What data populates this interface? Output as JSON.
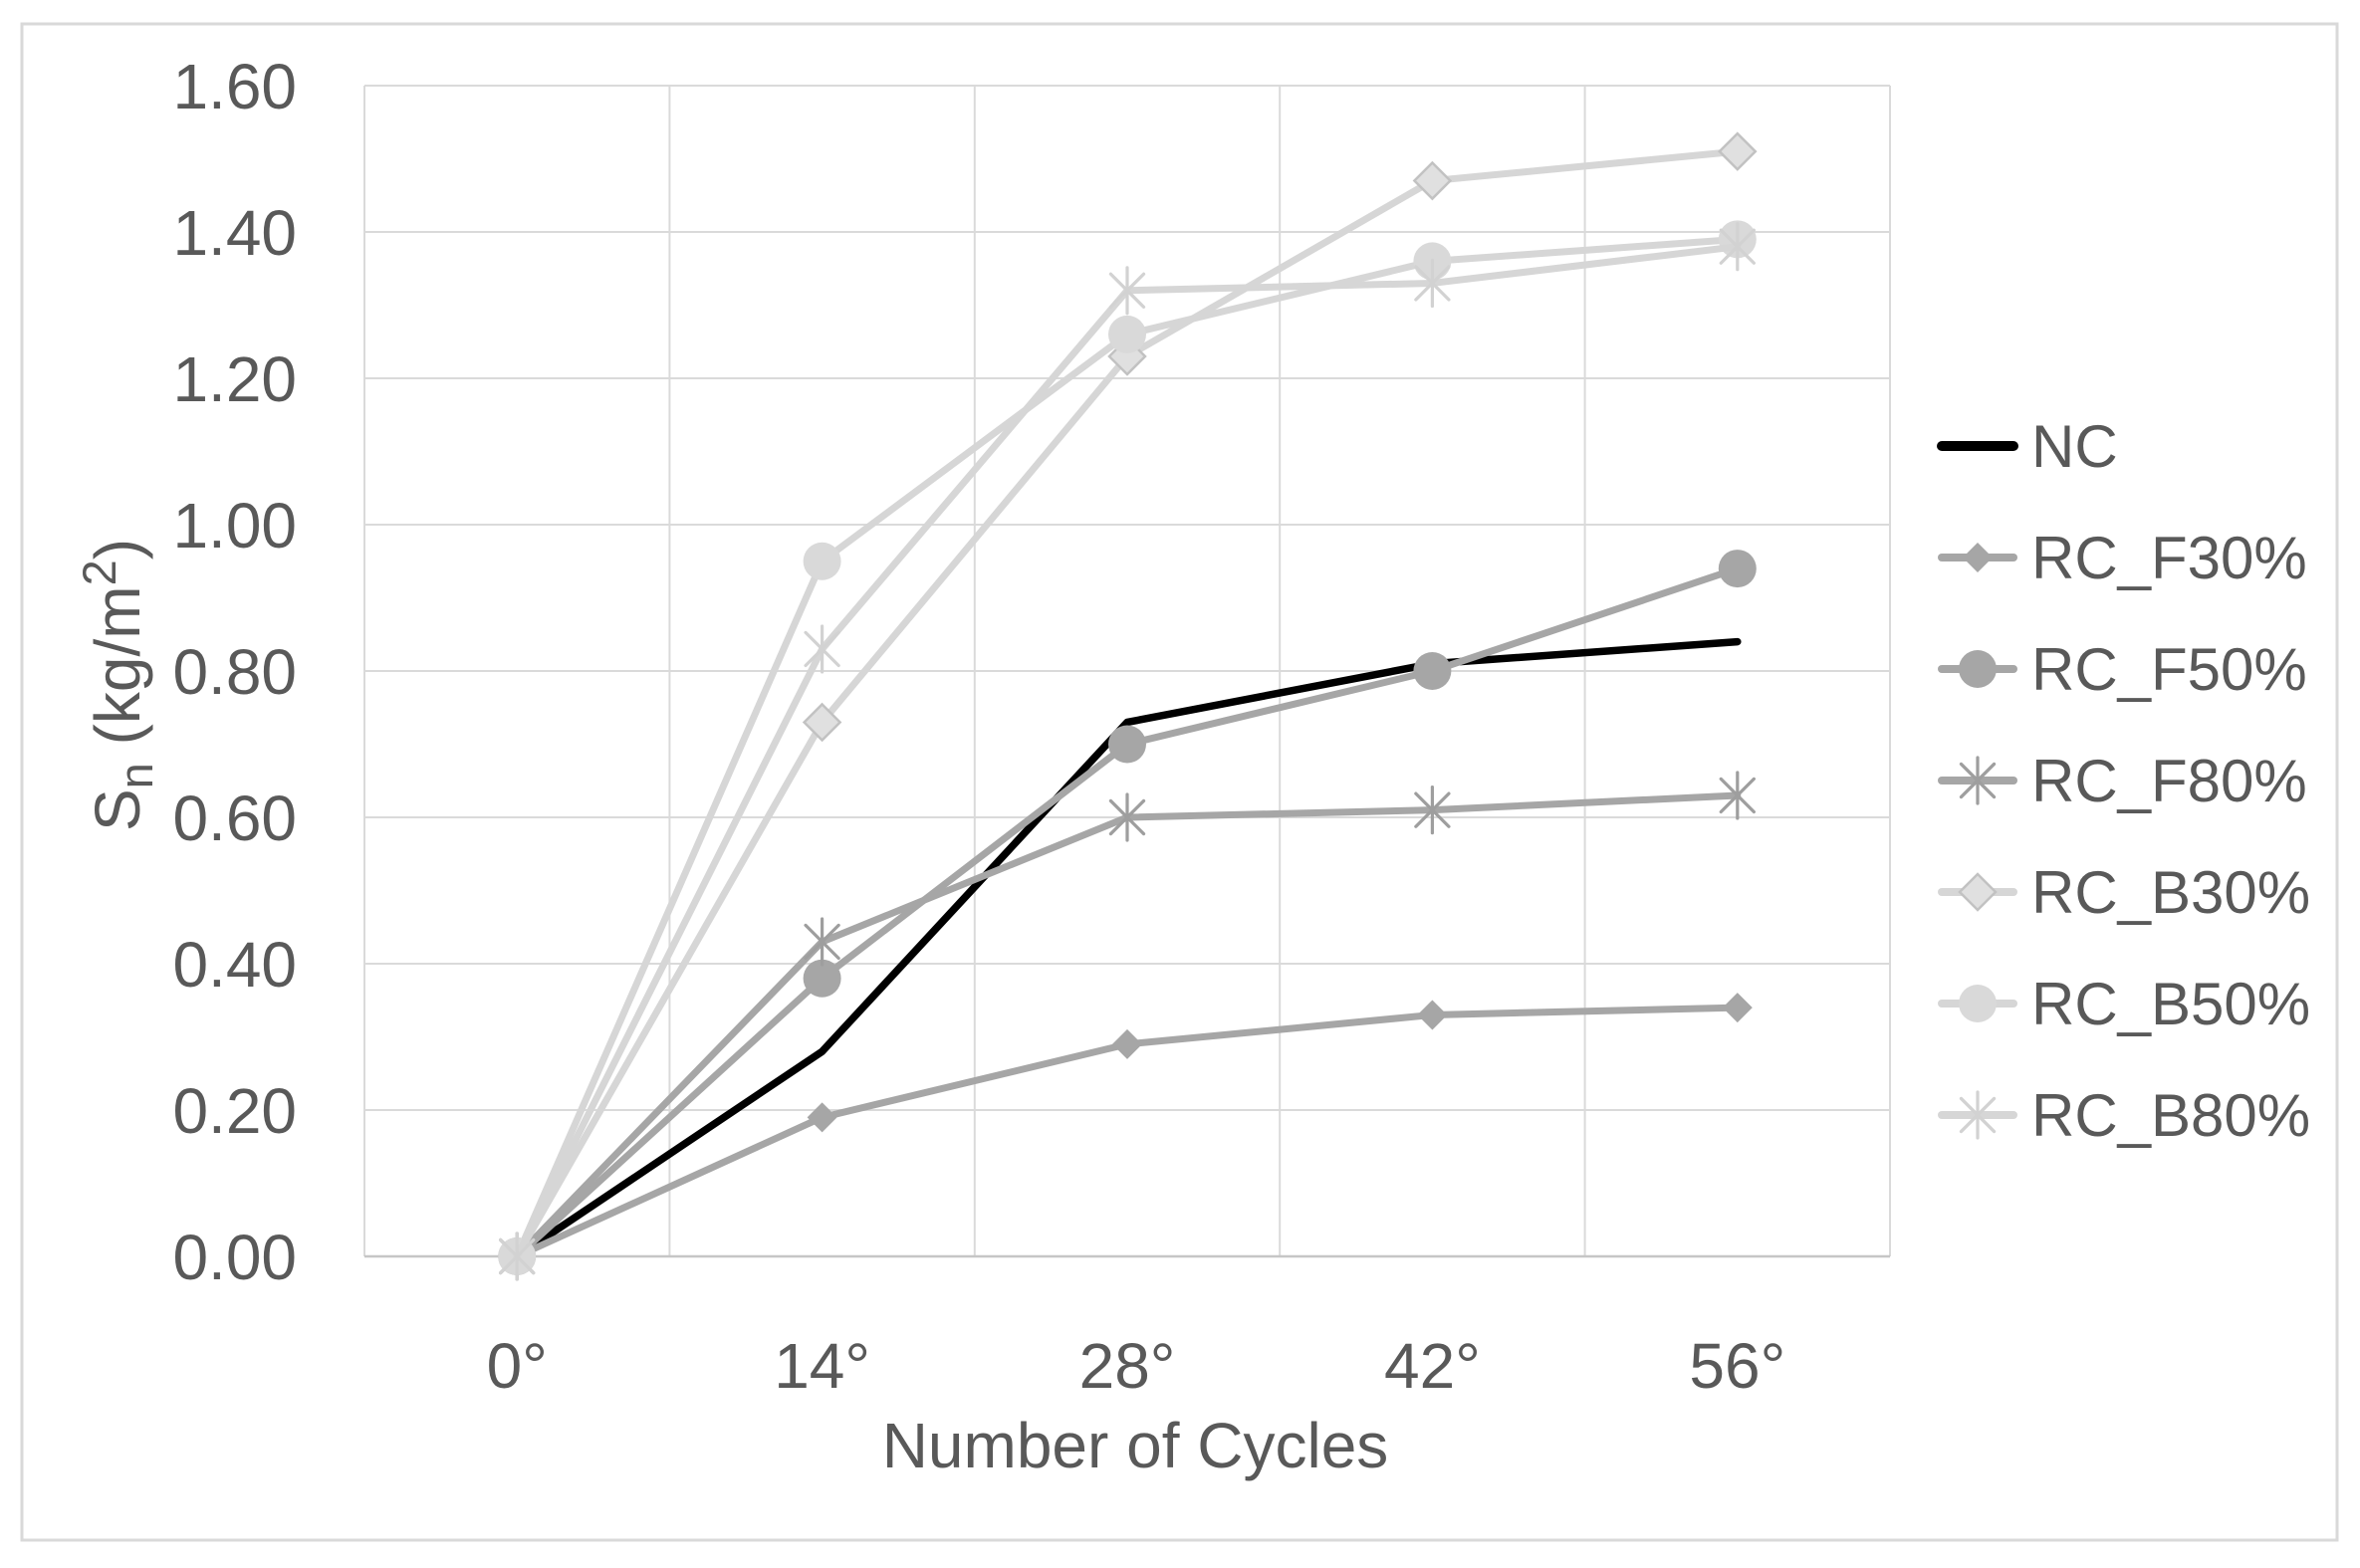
{
  "ui": {
    "colors": {
      "background": "#ffffff",
      "chart_border": "#d9d9d9",
      "gridline": "#dadada",
      "axis_line": "#c6c6c6",
      "text": "#595959",
      "nc_black": "#000000",
      "f_gray": "#a6a6a6",
      "b_gray": "#d6d6d6"
    }
  },
  "chart_data": {
    "type": "line",
    "title": "",
    "xlabel": "Number of Cycles",
    "ylabel": "Sₙ (kg/m²)",
    "ylabel_parts": {
      "base": "S",
      "sub": "n",
      "unit_open": " (kg/m",
      "sup": "2",
      "unit_close": ")"
    },
    "categories": [
      "0°",
      "14°",
      "28°",
      "42°",
      "56°"
    ],
    "ylim": [
      0,
      1.6
    ],
    "ytick_step": 0.2,
    "ytick_labels": [
      "0.00",
      "0.20",
      "0.40",
      "0.60",
      "0.80",
      "1.00",
      "1.20",
      "1.40",
      "1.60"
    ],
    "grid": true,
    "legend_position": "right",
    "series": [
      {
        "name": "NC",
        "values": [
          0.0,
          0.28,
          0.73,
          0.81,
          0.84
        ],
        "line_color": "#000000",
        "marker": "none"
      },
      {
        "name": "RC_F30%",
        "values": [
          0.0,
          0.19,
          0.29,
          0.33,
          0.34
        ],
        "line_color": "#a6a6a6",
        "marker": "diamond",
        "marker_color": "#a6a6a6",
        "marker_size": 15
      },
      {
        "name": "RC_F50%",
        "values": [
          0.0,
          0.38,
          0.7,
          0.8,
          0.94
        ],
        "line_color": "#a6a6a6",
        "marker": "circle",
        "marker_color": "#a6a6a6",
        "marker_size": 19
      },
      {
        "name": "RC_F80%",
        "values": [
          0.0,
          0.43,
          0.6,
          0.61,
          0.63
        ],
        "line_color": "#a6a6a6",
        "marker": "asterisk",
        "marker_color": "#9e9e9e",
        "marker_size": 23
      },
      {
        "name": "RC_B30%",
        "values": [
          0.0,
          0.73,
          1.23,
          1.47,
          1.51
        ],
        "line_color": "#d6d6d6",
        "marker": "diamond",
        "marker_color": "#e0e0e0",
        "marker_outline": "#c2c2c2",
        "marker_size": 18
      },
      {
        "name": "RC_B50%",
        "values": [
          0.0,
          0.95,
          1.26,
          1.36,
          1.39
        ],
        "line_color": "#d6d6d6",
        "marker": "circle",
        "marker_color": "#d9d9d9",
        "marker_size": 19
      },
      {
        "name": "RC_B80%",
        "values": [
          0.0,
          0.83,
          1.32,
          1.33,
          1.38
        ],
        "line_color": "#d6d6d6",
        "marker": "asterisk",
        "marker_color": "#d2d2d2",
        "marker_size": 23
      }
    ]
  }
}
